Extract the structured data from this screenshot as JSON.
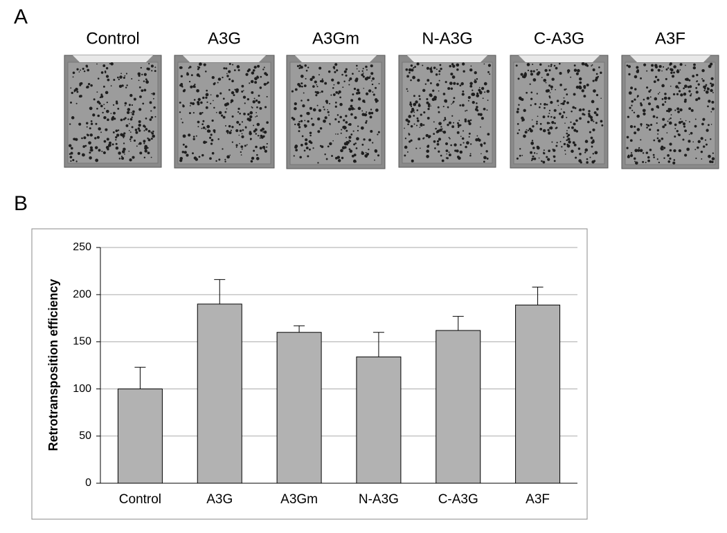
{
  "panel_a": {
    "label": "A",
    "plates": [
      "Control",
      "A3G",
      "A3Gm",
      "N-A3G",
      "C-A3G",
      "A3F"
    ]
  },
  "panel_b": {
    "label": "B"
  },
  "chart_data": {
    "type": "bar",
    "y_label": "Retrotransposition efficiency",
    "categories": [
      "Control",
      "A3G",
      "A3Gm",
      "N-A3G",
      "C-A3G",
      "A3F"
    ],
    "values": [
      100,
      190,
      160,
      134,
      162,
      189
    ],
    "errors": [
      23,
      26,
      7,
      26,
      15,
      19
    ],
    "color": "#b2b2b2",
    "ylim": [
      0,
      250
    ],
    "yticks": [
      0,
      50,
      100,
      150,
      200,
      250
    ],
    "grid": true
  }
}
